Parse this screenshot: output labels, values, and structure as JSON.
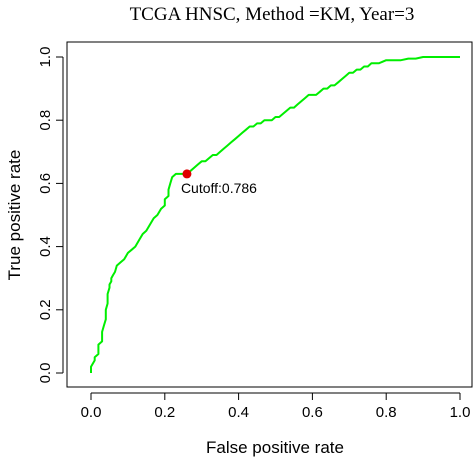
{
  "chart_data": {
    "type": "line",
    "title": "TCGA HNSC, Method =KM, Year=3",
    "xlabel": "False positive rate",
    "ylabel": "True positive rate",
    "xlim": [
      0,
      1
    ],
    "ylim": [
      0,
      1
    ],
    "x_ticks": [
      "0.0",
      "0.2",
      "0.4",
      "0.6",
      "0.8",
      "1.0"
    ],
    "y_ticks": [
      "0.0",
      "0.2",
      "0.4",
      "0.6",
      "0.8",
      "1.0"
    ],
    "grid": false,
    "legend": "none",
    "series": [
      {
        "color": "#00ee00",
        "x": [
          0.0,
          0.0,
          0.01,
          0.01,
          0.02,
          0.02,
          0.03,
          0.03,
          0.035,
          0.04,
          0.04,
          0.045,
          0.045,
          0.05,
          0.05,
          0.055,
          0.055,
          0.06,
          0.065,
          0.07,
          0.08,
          0.09,
          0.1,
          0.11,
          0.12,
          0.13,
          0.14,
          0.15,
          0.16,
          0.17,
          0.18,
          0.19,
          0.2,
          0.2,
          0.21,
          0.21,
          0.215,
          0.22,
          0.23,
          0.24,
          0.25,
          0.26,
          0.27,
          0.28,
          0.29,
          0.3,
          0.31,
          0.32,
          0.33,
          0.34,
          0.35,
          0.36,
          0.37,
          0.38,
          0.39,
          0.4,
          0.41,
          0.42,
          0.43,
          0.44,
          0.45,
          0.46,
          0.47,
          0.48,
          0.49,
          0.5,
          0.51,
          0.52,
          0.53,
          0.54,
          0.55,
          0.56,
          0.57,
          0.58,
          0.59,
          0.6,
          0.61,
          0.62,
          0.63,
          0.64,
          0.65,
          0.66,
          0.67,
          0.68,
          0.69,
          0.7,
          0.71,
          0.72,
          0.73,
          0.74,
          0.75,
          0.76,
          0.77,
          0.78,
          0.8,
          0.82,
          0.84,
          0.86,
          0.88,
          0.9,
          0.92,
          0.94,
          0.96,
          0.98,
          1.0
        ],
        "y": [
          0.0,
          0.02,
          0.04,
          0.05,
          0.06,
          0.09,
          0.1,
          0.13,
          0.15,
          0.17,
          0.2,
          0.22,
          0.25,
          0.27,
          0.28,
          0.29,
          0.3,
          0.31,
          0.32,
          0.34,
          0.35,
          0.36,
          0.38,
          0.39,
          0.4,
          0.42,
          0.44,
          0.45,
          0.47,
          0.49,
          0.5,
          0.52,
          0.53,
          0.55,
          0.56,
          0.58,
          0.6,
          0.62,
          0.63,
          0.63,
          0.63,
          0.63,
          0.64,
          0.65,
          0.66,
          0.67,
          0.67,
          0.68,
          0.69,
          0.69,
          0.7,
          0.71,
          0.72,
          0.73,
          0.74,
          0.75,
          0.76,
          0.77,
          0.78,
          0.78,
          0.79,
          0.79,
          0.8,
          0.8,
          0.8,
          0.81,
          0.81,
          0.82,
          0.83,
          0.84,
          0.84,
          0.85,
          0.86,
          0.87,
          0.88,
          0.88,
          0.88,
          0.89,
          0.9,
          0.9,
          0.91,
          0.91,
          0.92,
          0.93,
          0.94,
          0.95,
          0.95,
          0.96,
          0.96,
          0.97,
          0.97,
          0.98,
          0.98,
          0.98,
          0.99,
          0.99,
          0.99,
          0.995,
          0.995,
          1.0,
          1.0,
          1.0,
          1.0,
          1.0,
          1.0
        ]
      }
    ],
    "cutoff_point": {
      "x": 0.26,
      "y": 0.63,
      "color": "#e00000",
      "label": "Cutoff:0.786"
    }
  }
}
